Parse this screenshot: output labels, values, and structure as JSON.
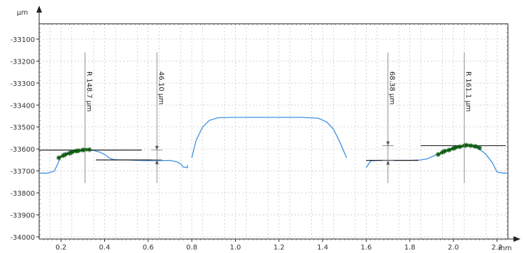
{
  "chart_data": {
    "type": "line",
    "title": "",
    "xlabel": "",
    "ylabel": "",
    "x_unit": "mm",
    "y_unit": "µm",
    "xlim": [
      0.1,
      2.25
    ],
    "ylim": [
      -34010,
      -33030
    ],
    "x_ticks": [
      "0.2",
      "0.4",
      "0.6",
      "0.8",
      "1.0",
      "1.2",
      "1.4",
      "1.6",
      "1.8",
      "2.0",
      "2.2"
    ],
    "y_ticks": [
      "-33100",
      "-33200",
      "-33300",
      "-33400",
      "-33500",
      "-33600",
      "-33700",
      "-33800",
      "-33900",
      "-34000"
    ],
    "grid": true,
    "series": [
      {
        "color": "#3d8fe0",
        "segments": [
          {
            "x": [
              0.1,
              0.14,
              0.17,
              0.2,
              0.23,
              0.26,
              0.29,
              0.32,
              0.35,
              0.38,
              0.4,
              0.42,
              0.44,
              0.47,
              0.5,
              0.55,
              0.6,
              0.65,
              0.7,
              0.73,
              0.75,
              0.76,
              0.78,
              0.78
            ],
            "y": [
              -33710,
              -33710,
              -33700,
              -33635,
              -33615,
              -33605,
              -33603,
              -33603,
              -33607,
              -33615,
              -33625,
              -33640,
              -33648,
              -33650,
              -33650,
              -33652,
              -33653,
              -33653,
              -33652,
              -33658,
              -33668,
              -33682,
              -33685,
              -33673
            ]
          },
          {
            "x": [
              0.8,
              0.82,
              0.85,
              0.88,
              0.92,
              1.0,
              1.1,
              1.2,
              1.3,
              1.38,
              1.42,
              1.45,
              1.48,
              1.51
            ],
            "y": [
              -33640,
              -33560,
              -33500,
              -33470,
              -33458,
              -33456,
              -33456,
              -33456,
              -33456,
              -33460,
              -33478,
              -33510,
              -33570,
              -33640
            ]
          },
          {
            "x": [
              1.6,
              1.61,
              1.62,
              1.65,
              1.7,
              1.75,
              1.8,
              1.85,
              1.88,
              1.9,
              1.93,
              1.96,
              2.0,
              2.05,
              2.08,
              2.12,
              2.15,
              2.18,
              2.2,
              2.23,
              2.25
            ],
            "y": [
              -33685,
              -33670,
              -33655,
              -33652,
              -33652,
              -33652,
              -33652,
              -33650,
              -33645,
              -33636,
              -33622,
              -33608,
              -33592,
              -33585,
              -33588,
              -33600,
              -33625,
              -33665,
              -33705,
              -33710,
              -33710
            ]
          }
        ]
      }
    ],
    "fit_points": [
      {
        "x": [
          0.19,
          0.21,
          0.22,
          0.24,
          0.25,
          0.27,
          0.28,
          0.3,
          0.31,
          0.33
        ],
        "y": [
          -33640,
          -33630,
          -33625,
          -33620,
          -33615,
          -33610,
          -33608,
          -33605,
          -33603,
          -33603
        ]
      },
      {
        "x": [
          1.93,
          1.95,
          1.96,
          1.98,
          2.0,
          2.01,
          2.03,
          2.05,
          2.06,
          2.08,
          2.1,
          2.12
        ],
        "y": [
          -33625,
          -33615,
          -33610,
          -33605,
          -33598,
          -33593,
          -33590,
          -33585,
          -33583,
          -33585,
          -33588,
          -33595
        ]
      }
    ],
    "reference_lines": [
      {
        "x": [
          0.1,
          0.57
        ],
        "y": [
          -33605,
          -33605
        ]
      },
      {
        "x": [
          0.36,
          0.66
        ],
        "y": [
          -33650,
          -33650
        ]
      },
      {
        "x": [
          1.85,
          2.24
        ],
        "y": [
          -33585,
          -33585
        ]
      },
      {
        "x": [
          1.6,
          1.84
        ],
        "y": [
          -33652,
          -33652
        ]
      }
    ],
    "annotations": [
      {
        "text": "R 148.7 µm",
        "x": 0.31
      },
      {
        "text": "46.10 µm",
        "x": 0.64
      },
      {
        "text": "68.38 µm",
        "x": 1.7
      },
      {
        "text": "R 161.1 µm",
        "x": 2.05
      }
    ]
  }
}
